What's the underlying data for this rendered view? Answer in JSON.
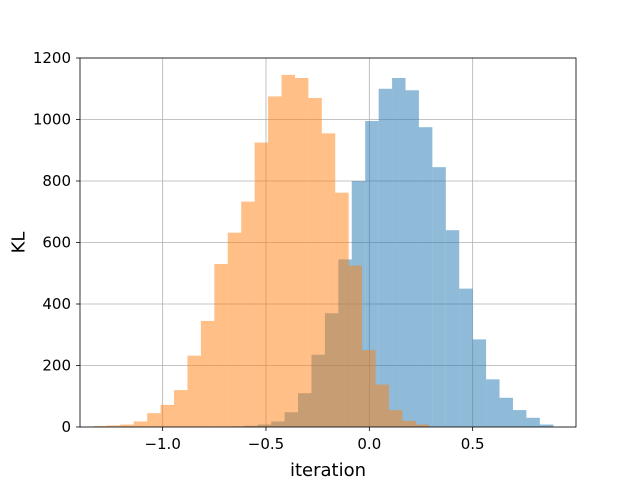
{
  "chart_data": {
    "type": "bar",
    "subtype": "overlapping-histogram",
    "title": "",
    "xlabel": "iteration",
    "ylabel": "KL",
    "xlim": [
      -1.4,
      1.0
    ],
    "ylim": [
      0,
      1200
    ],
    "xticks": [
      -1.0,
      -0.5,
      0.0,
      0.5
    ],
    "xtick_labels": [
      "−1.0",
      "−0.5",
      "0.0",
      "0.5"
    ],
    "yticks": [
      0,
      200,
      400,
      600,
      800,
      1000,
      1200
    ],
    "ytick_labels": [
      "0",
      "200",
      "400",
      "600",
      "800",
      "1000",
      "1200"
    ],
    "grid": true,
    "legend": "none",
    "series": [
      {
        "color": "#1f77b4",
        "alpha": 0.5,
        "bin_edges": [
          -0.67,
          -0.605,
          -0.54,
          -0.475,
          -0.41,
          -0.345,
          -0.28,
          -0.215,
          -0.15,
          -0.085,
          -0.02,
          0.045,
          0.11,
          0.175,
          0.24,
          0.305,
          0.37,
          0.435,
          0.5,
          0.565,
          0.63,
          0.695,
          0.76,
          0.825,
          0.89
        ],
        "counts": [
          2,
          4,
          8,
          18,
          48,
          110,
          235,
          370,
          545,
          800,
          995,
          1100,
          1135,
          1095,
          975,
          845,
          640,
          450,
          285,
          155,
          95,
          55,
          30,
          8
        ]
      },
      {
        "color": "#ff7f0e",
        "alpha": 0.5,
        "bin_edges": [
          -1.335,
          -1.27,
          -1.205,
          -1.14,
          -1.075,
          -1.01,
          -0.945,
          -0.88,
          -0.815,
          -0.75,
          -0.685,
          -0.62,
          -0.555,
          -0.49,
          -0.425,
          -0.36,
          -0.295,
          -0.23,
          -0.165,
          -0.1,
          -0.035,
          0.03,
          0.095,
          0.16,
          0.225,
          0.29
        ],
        "counts": [
          3,
          5,
          8,
          18,
          45,
          72,
          120,
          232,
          345,
          530,
          632,
          733,
          925,
          1075,
          1145,
          1135,
          1070,
          955,
          762,
          525,
          250,
          138,
          55,
          20,
          8
        ]
      }
    ]
  }
}
